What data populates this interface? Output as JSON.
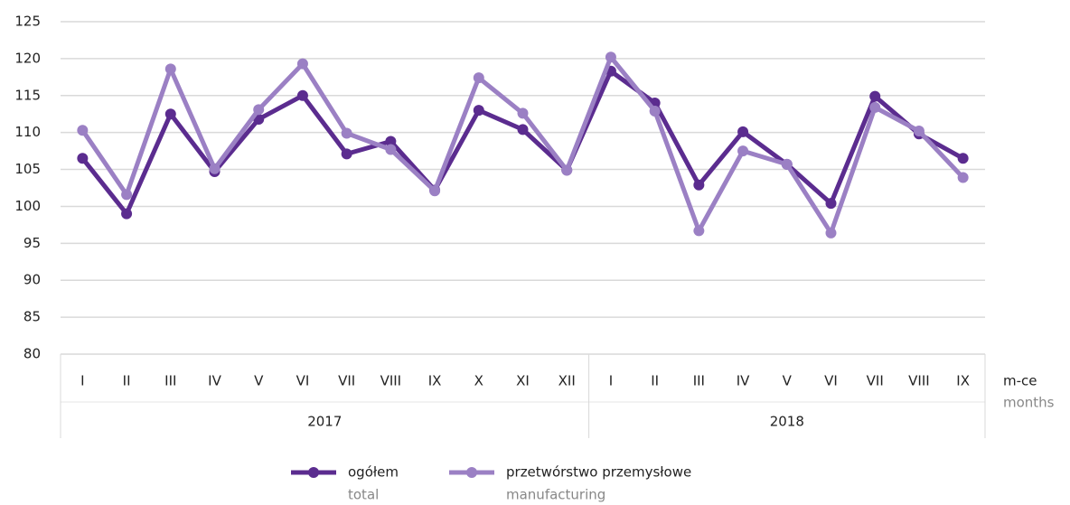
{
  "chart_data": {
    "type": "line",
    "category_groups": [
      {
        "label": "2017",
        "categories": [
          "I",
          "II",
          "III",
          "IV",
          "V",
          "VI",
          "VII",
          "VIII",
          "IX",
          "X",
          "XI",
          "XII"
        ]
      },
      {
        "label": "2018",
        "categories": [
          "I",
          "II",
          "III",
          "IV",
          "V",
          "VI",
          "VII",
          "VIII",
          "IX"
        ]
      }
    ],
    "x_label": "m-ce",
    "x_label_en": "months",
    "series": [
      {
        "name": "ogółem",
        "name_en": "total",
        "color": "#5b2c8f",
        "values": [
          106.5,
          99,
          112.5,
          104.7,
          111.8,
          115,
          107.1,
          108.8,
          102.2,
          113,
          110.4,
          104.9,
          118.3,
          114,
          102.9,
          110.1,
          105.7,
          100.4,
          114.9,
          109.8,
          106.5
        ]
      },
      {
        "name": "przetwórstwo przemysłowe",
        "name_en": "manufacturing",
        "color": "#9b80c4",
        "values": [
          110.3,
          101.6,
          118.6,
          105.1,
          113.1,
          119.3,
          109.9,
          107.7,
          102.1,
          117.4,
          112.6,
          104.9,
          120.2,
          112.9,
          96.7,
          107.5,
          105.7,
          96.4,
          113.4,
          110.2,
          103.9
        ]
      }
    ],
    "ylim": [
      80,
      125
    ],
    "yticks": [
      80,
      85,
      90,
      95,
      100,
      105,
      110,
      115,
      120,
      125
    ],
    "grid": true
  }
}
